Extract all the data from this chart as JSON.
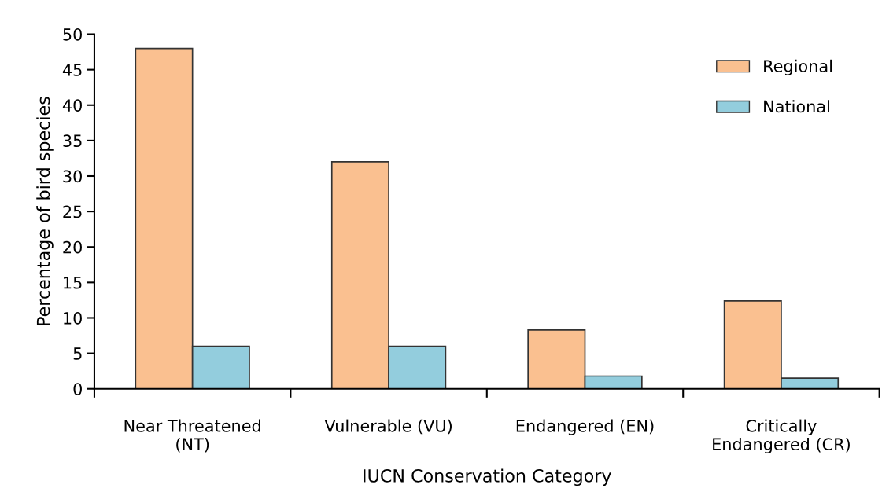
{
  "chart_data": {
    "type": "bar",
    "xlabel": "IUCN Conservation Category",
    "ylabel": "Percentage of bird species",
    "categories": [
      "Near Threatened\n(NT)",
      "Vulnerable (VU)",
      "Endangered (EN)",
      "Critically\nEndangered (CR)"
    ],
    "series": [
      {
        "name": "Regional",
        "color": "#fac090",
        "values": [
          48,
          32,
          8.3,
          12.4
        ]
      },
      {
        "name": "National",
        "color": "#93cddd",
        "values": [
          6,
          6,
          1.8,
          1.5
        ]
      }
    ],
    "ylim": [
      0,
      50
    ],
    "yticks": [
      0,
      5,
      10,
      15,
      20,
      25,
      30,
      35,
      40,
      45,
      50
    ],
    "grid": false,
    "legend": "top right"
  }
}
